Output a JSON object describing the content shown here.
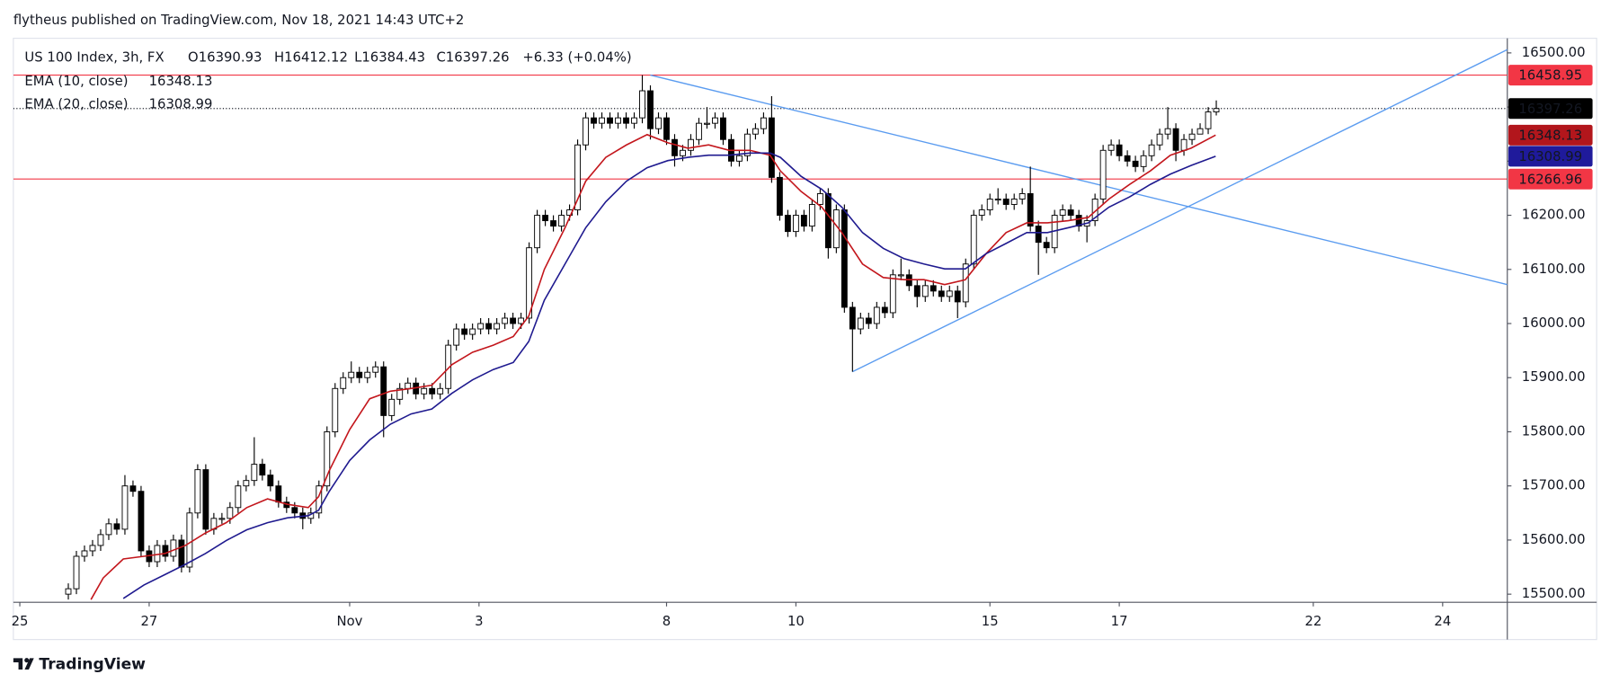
{
  "header": {
    "publisher": "flytheus published on TradingView.com, Nov 18, 2021 14:43 UTC+2"
  },
  "footer": {
    "brand": "TradingView"
  },
  "chart_data": {
    "type": "candlestick",
    "title": "US 100 Index, 3h, FX",
    "ohlc": [
      "O16390.93",
      "H16412.12",
      "L16384.43",
      "C16397.26"
    ],
    "change": "+6.33 (+0.04%)",
    "xlim": [
      -0.1,
      23
    ],
    "xticks": [
      {
        "value": 0,
        "label": "25"
      },
      {
        "value": 2,
        "label": "27"
      },
      {
        "value": 5.1,
        "label": "Nov"
      },
      {
        "value": 7.1,
        "label": "3"
      },
      {
        "value": 10,
        "label": "8"
      },
      {
        "value": 12,
        "label": "10"
      },
      {
        "value": 15,
        "label": "15"
      },
      {
        "value": 17,
        "label": "17"
      },
      {
        "value": 20,
        "label": "22"
      },
      {
        "value": 22,
        "label": "24"
      }
    ],
    "ylim": [
      15485,
      16527
    ],
    "yticks": [
      {
        "value": 15500,
        "label": "15500.00"
      },
      {
        "value": 15600,
        "label": "15600.00"
      },
      {
        "value": 15700,
        "label": "15700.00"
      },
      {
        "value": 15800,
        "label": "15800.00"
      },
      {
        "value": 15900,
        "label": "15900.00"
      },
      {
        "value": 16000,
        "label": "16000.00"
      },
      {
        "value": 16100,
        "label": "16100.00"
      },
      {
        "value": 16200,
        "label": "16200.00"
      },
      {
        "value": 16300,
        "label": "16300.00"
      },
      {
        "value": 16400,
        "label": "16400.00"
      },
      {
        "value": 16500,
        "label": "16500.00"
      }
    ],
    "grid": false,
    "up_color": "#ffffff",
    "down_color": "#000000",
    "x": [
      0.75,
      0.875,
      1,
      1.125,
      1.25,
      1.375,
      1.5,
      1.625,
      1.75,
      1.875,
      2,
      2.125,
      2.25,
      2.375,
      2.5,
      2.625,
      2.75,
      2.875,
      3,
      3.125,
      3.25,
      3.375,
      3.5,
      3.625,
      3.75,
      3.875,
      4,
      4.125,
      4.25,
      4.375,
      4.5,
      4.625,
      4.75,
      4.875,
      5,
      5.125,
      5.25,
      5.375,
      5.5,
      5.625,
      5.75,
      5.875,
      6,
      6.125,
      6.25,
      6.375,
      6.5,
      6.625,
      6.75,
      6.875,
      7,
      7.125,
      7.25,
      7.375,
      7.5,
      7.625,
      7.75,
      7.875,
      8,
      8.125,
      8.25,
      8.375,
      8.5,
      8.625,
      8.75,
      8.875,
      9,
      9.125,
      9.25,
      9.375,
      9.5,
      9.625,
      9.75,
      9.875,
      10,
      10.125,
      10.25,
      10.375,
      10.5,
      10.625,
      10.75,
      10.875,
      11,
      11.125,
      11.25,
      11.375,
      11.5,
      11.625,
      11.75,
      11.875,
      12,
      12.125,
      12.25,
      12.375,
      12.5,
      12.625,
      12.75,
      12.875,
      13,
      13.125,
      13.25,
      13.375,
      13.5,
      13.625,
      13.75,
      13.875,
      14,
      14.125,
      14.25,
      14.375,
      14.5,
      14.625,
      14.75,
      14.875,
      15,
      15.125,
      15.25,
      15.375,
      15.5,
      15.625,
      15.75,
      15.875,
      16,
      16.125,
      16.25,
      16.375,
      16.5,
      16.625,
      16.75,
      16.875,
      17,
      17.125,
      17.25,
      17.375,
      17.5,
      17.625,
      17.75,
      17.875,
      18,
      18.125,
      18.25,
      18.375,
      18.5
    ],
    "open": [
      15500,
      15510,
      15570,
      15580,
      15590,
      15610,
      15630,
      15620,
      15700,
      15690,
      15580,
      15560,
      15590,
      15570,
      15600,
      15550,
      15650,
      15730,
      15620,
      15640,
      15640,
      15660,
      15700,
      15710,
      15740,
      15720,
      15700,
      15670,
      15660,
      15650,
      15640,
      15650,
      15700,
      15800,
      15880,
      15900,
      15910,
      15900,
      15910,
      15920,
      15830,
      15860,
      15880,
      15890,
      15870,
      15880,
      15870,
      15880,
      15960,
      15990,
      15980,
      15990,
      16000,
      15990,
      16000,
      16010,
      16000,
      16010,
      16140,
      16200,
      16190,
      16180,
      16200,
      16210,
      16330,
      16380,
      16370,
      16380,
      16370,
      16380,
      16370,
      16380,
      16430,
      16360,
      16380,
      16340,
      16310,
      16320,
      16340,
      16370,
      16370,
      16380,
      16340,
      16300,
      16310,
      16350,
      16360,
      16380,
      16270,
      16200,
      16170,
      16200,
      16180,
      16220,
      16240,
      16140,
      16210,
      16030,
      15990,
      16010,
      16000,
      16030,
      16020,
      16090,
      16090,
      16070,
      16050,
      16070,
      16060,
      16050,
      16060,
      16040,
      16110,
      16200,
      16210,
      16230,
      16230,
      16220,
      16230,
      16240,
      16180,
      16150,
      16140,
      16200,
      16210,
      16200,
      16180,
      16190,
      16230,
      16320,
      16330,
      16310,
      16300,
      16290,
      16310,
      16330,
      16350,
      16360,
      16320,
      16340,
      16350,
      16360,
      16390.93
    ],
    "high": [
      15520,
      15580,
      15590,
      15600,
      15620,
      15640,
      15640,
      15720,
      15710,
      15700,
      15590,
      15600,
      15600,
      15610,
      15610,
      15660,
      15740,
      15740,
      15650,
      15650,
      15670,
      15710,
      15720,
      15790,
      15750,
      15730,
      15710,
      15680,
      15670,
      15660,
      15660,
      15710,
      15810,
      15890,
      15910,
      15930,
      15920,
      15920,
      15930,
      15930,
      15870,
      15890,
      15900,
      15900,
      15890,
      15890,
      15890,
      15970,
      16000,
      16000,
      16000,
      16010,
      16010,
      16010,
      16020,
      16020,
      16020,
      16150,
      16210,
      16210,
      16200,
      16210,
      16220,
      16340,
      16390,
      16390,
      16390,
      16390,
      16390,
      16390,
      16390,
      16458.95,
      16440,
      16390,
      16390,
      16350,
      16330,
      16350,
      16380,
      16400,
      16390,
      16390,
      16350,
      16320,
      16360,
      16370,
      16390,
      16420,
      16280,
      16210,
      16210,
      16210,
      16230,
      16250,
      16250,
      16220,
      16220,
      16040,
      16020,
      16020,
      16040,
      16040,
      16100,
      16120,
      16100,
      16080,
      16080,
      16080,
      16070,
      16070,
      16070,
      16120,
      16210,
      16220,
      16240,
      16250,
      16240,
      16240,
      16250,
      16290,
      16190,
      16160,
      16210,
      16220,
      16220,
      16210,
      16200,
      16240,
      16330,
      16340,
      16340,
      16320,
      16310,
      16320,
      16340,
      16360,
      16400,
      16370,
      16350,
      16360,
      16370,
      16400,
      16412.12
    ],
    "low": [
      15490,
      15500,
      15560,
      15570,
      15580,
      15600,
      15610,
      15610,
      15680,
      15570,
      15550,
      15550,
      15560,
      15560,
      15540,
      15540,
      15640,
      15610,
      15610,
      15630,
      15630,
      15650,
      15690,
      15700,
      15710,
      15690,
      15660,
      15650,
      15640,
      15620,
      15630,
      15640,
      15690,
      15790,
      15870,
      15890,
      15890,
      15890,
      15900,
      15790,
      15820,
      15850,
      15870,
      15860,
      15860,
      15860,
      15860,
      15870,
      15950,
      15970,
      15970,
      15980,
      15980,
      15980,
      15990,
      15990,
      15990,
      16000,
      16130,
      16180,
      16170,
      16170,
      16190,
      16200,
      16320,
      16360,
      16360,
      16360,
      16360,
      16360,
      16360,
      16370,
      16340,
      16350,
      16330,
      16290,
      16300,
      16310,
      16330,
      16360,
      16360,
      16330,
      16290,
      16290,
      16300,
      16340,
      16350,
      16260,
      16190,
      16160,
      16160,
      16170,
      16170,
      16210,
      16120,
      16130,
      16020,
      15911,
      15980,
      15990,
      15990,
      16010,
      16010,
      16080,
      16060,
      16030,
      16040,
      16050,
      16040,
      16040,
      16010,
      16030,
      16100,
      16190,
      16200,
      16220,
      16210,
      16210,
      16220,
      16170,
      16090,
      16130,
      16130,
      16190,
      16190,
      16170,
      16150,
      16180,
      16220,
      16310,
      16300,
      16290,
      16280,
      16280,
      16300,
      16320,
      16340,
      16300,
      16310,
      16330,
      16350,
      16350,
      16384.43
    ],
    "close": [
      15510,
      15570,
      15580,
      15590,
      15610,
      15630,
      15620,
      15700,
      15690,
      15580,
      15560,
      15590,
      15570,
      15600,
      15550,
      15650,
      15730,
      15620,
      15640,
      15640,
      15660,
      15700,
      15710,
      15740,
      15720,
      15700,
      15670,
      15660,
      15650,
      15640,
      15650,
      15700,
      15800,
      15880,
      15900,
      15910,
      15900,
      15910,
      15920,
      15830,
      15860,
      15880,
      15890,
      15870,
      15880,
      15870,
      15880,
      15960,
      15990,
      15980,
      15990,
      16000,
      15990,
      16000,
      16010,
      16000,
      16010,
      16140,
      16200,
      16190,
      16180,
      16200,
      16210,
      16330,
      16380,
      16370,
      16380,
      16370,
      16380,
      16370,
      16380,
      16430,
      16360,
      16380,
      16340,
      16310,
      16320,
      16340,
      16370,
      16370,
      16380,
      16340,
      16300,
      16310,
      16350,
      16360,
      16380,
      16270,
      16200,
      16170,
      16200,
      16180,
      16220,
      16240,
      16140,
      16210,
      16030,
      15990,
      16010,
      16000,
      16030,
      16020,
      16090,
      16090,
      16070,
      16050,
      16070,
      16060,
      16050,
      16060,
      16040,
      16110,
      16200,
      16210,
      16230,
      16230,
      16220,
      16230,
      16240,
      16180,
      16150,
      16140,
      16200,
      16210,
      16200,
      16180,
      16190,
      16230,
      16320,
      16330,
      16310,
      16300,
      16290,
      16310,
      16330,
      16350,
      16360,
      16320,
      16340,
      16350,
      16360,
      16390.93,
      16397.26
    ],
    "series": [
      {
        "name": "EMA (10, close)",
        "color": "#c3161c",
        "last": 16348.13,
        "x": [
          1.1,
          1.29,
          1.6,
          1.92,
          2.24,
          2.56,
          2.87,
          3.19,
          3.51,
          3.83,
          4.14,
          4.46,
          4.62,
          4.78,
          5.1,
          5.41,
          5.73,
          6.05,
          6.37,
          6.68,
          7.0,
          7.32,
          7.63,
          7.87,
          8.11,
          8.43,
          8.75,
          9.06,
          9.38,
          9.7,
          10.02,
          10.33,
          10.65,
          10.97,
          11.29,
          11.6,
          11.76,
          12.08,
          12.4,
          12.71,
          13.03,
          13.35,
          13.67,
          13.98,
          14.3,
          14.62,
          14.94,
          15.25,
          15.57,
          15.89,
          16.21,
          16.52,
          16.84,
          17.16,
          17.48,
          17.79,
          18.11,
          18.49
        ],
        "values": [
          15490,
          15530,
          15565,
          15570,
          15575,
          15590,
          15613,
          15632,
          15660,
          15676,
          15666,
          15660,
          15680,
          15727,
          15804,
          15861,
          15875,
          15880,
          15886,
          15924,
          15947,
          15960,
          15976,
          16014,
          16100,
          16177,
          16263,
          16307,
          16330,
          16349,
          16334,
          16324,
          16330,
          16320,
          16320,
          16311,
          16282,
          16244,
          16215,
          16168,
          16110,
          16085,
          16081,
          16081,
          16072,
          16081,
          16129,
          16168,
          16186,
          16186,
          16190,
          16196,
          16230,
          16257,
          16282,
          16311,
          16324,
          16348.13
        ]
      },
      {
        "name": "EMA (20, close)",
        "color": "#1f1a8f",
        "last": 16308.99,
        "x": [
          1.6,
          1.92,
          2.24,
          2.56,
          2.87,
          3.19,
          3.51,
          3.83,
          4.14,
          4.46,
          4.62,
          4.78,
          5.1,
          5.41,
          5.73,
          6.05,
          6.37,
          6.68,
          7.0,
          7.32,
          7.63,
          7.87,
          8.11,
          8.43,
          8.75,
          9.06,
          9.38,
          9.7,
          10.02,
          10.33,
          10.65,
          10.97,
          11.29,
          11.6,
          11.76,
          12.08,
          12.4,
          12.71,
          13.03,
          13.35,
          13.67,
          13.98,
          14.3,
          14.62,
          14.94,
          15.25,
          15.57,
          15.89,
          16.21,
          16.52,
          16.84,
          17.16,
          17.48,
          17.79,
          18.11,
          18.49
        ],
        "values": [
          15492,
          15517,
          15536,
          15555,
          15575,
          15599,
          15619,
          15632,
          15641,
          15645,
          15655,
          15689,
          15747,
          15785,
          15814,
          15833,
          15842,
          15871,
          15896,
          15915,
          15928,
          15967,
          16043,
          16110,
          16177,
          16225,
          16263,
          16288,
          16301,
          16307,
          16311,
          16311,
          16315,
          16315,
          16307,
          16272,
          16248,
          16215,
          16168,
          16139,
          16120,
          16110,
          16101,
          16101,
          16129,
          16148,
          16168,
          16168,
          16177,
          16186,
          16215,
          16234,
          16257,
          16276,
          16292,
          16308.99
        ]
      }
    ],
    "trendlines": [
      {
        "color": "#5b9cf0",
        "x": [
          9.75,
          23
        ],
        "values": [
          16458.95,
          16072
        ]
      },
      {
        "color": "#5b9cf0",
        "x": [
          12.875,
          23
        ],
        "values": [
          15911,
          16506
        ]
      }
    ],
    "hlines": [
      {
        "value": 16458.95,
        "color": "#f23645"
      },
      {
        "value": 16266.96,
        "color": "#f23645"
      }
    ],
    "price_tags": [
      {
        "value": 16458.95,
        "color": "#f23645"
      },
      {
        "value": 16397.26,
        "color": "#000000"
      },
      {
        "value": 16348.13,
        "color": "#b2161c"
      },
      {
        "value": 16308.99,
        "color": "#1f1a9b"
      },
      {
        "value": 16266.96,
        "color": "#f23645"
      }
    ]
  }
}
